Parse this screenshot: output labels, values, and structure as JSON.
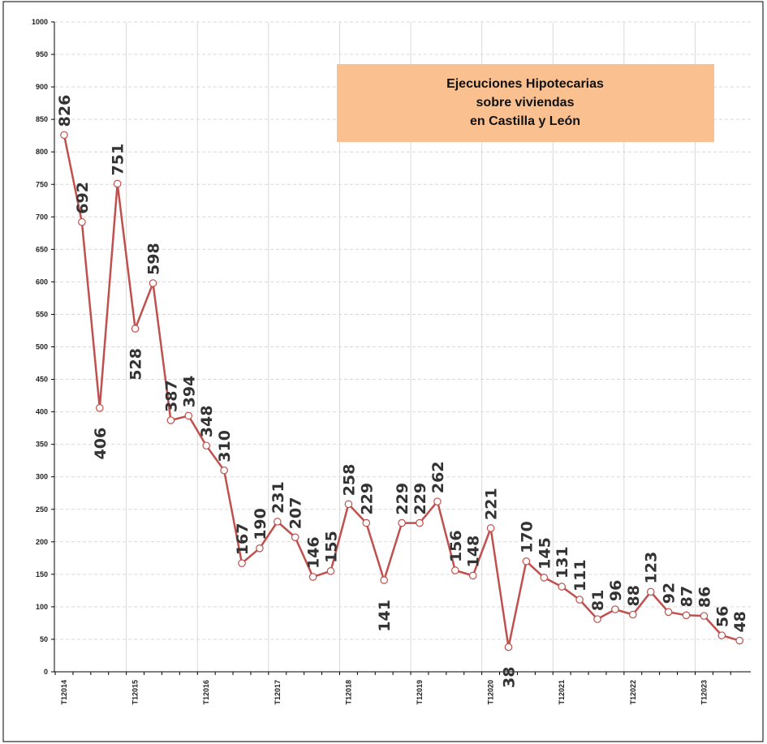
{
  "colors": {
    "line": "#c0504d",
    "marker_fill": "#ffffff",
    "title_box": "#fac090",
    "grid": "#d9d9d9",
    "vgrid": "#d9d9d9",
    "frame": "#000000"
  },
  "chart_data": {
    "type": "line",
    "title_lines": [
      "Ejecuciones Hipotecarias",
      "sobre viviendas",
      "en Castilla y León"
    ],
    "xlabel": "",
    "ylabel": "",
    "ylim": [
      0,
      1000
    ],
    "yticks": [
      0,
      50,
      100,
      150,
      200,
      250,
      300,
      350,
      400,
      450,
      500,
      550,
      600,
      650,
      700,
      750,
      800,
      850,
      900,
      950,
      1000
    ],
    "grid": true,
    "x_tick_labels": [
      "T12014",
      "T12015",
      "T12016",
      "T12017",
      "T12018",
      "T12019",
      "T12020",
      "T12021",
      "T12022",
      "T12023"
    ],
    "values": [
      826,
      692,
      406,
      751,
      528,
      598,
      387,
      394,
      348,
      310,
      167,
      190,
      231,
      207,
      146,
      155,
      258,
      229,
      141,
      229,
      229,
      262,
      156,
      148,
      221,
      38,
      170,
      145,
      131,
      111,
      81,
      96,
      88,
      123,
      92,
      87,
      86,
      56,
      48
    ],
    "labels": [
      "826",
      "692",
      "406",
      "751",
      "528",
      "598",
      "387",
      "394",
      "348",
      "310",
      "167",
      "190",
      "231",
      "207",
      "146",
      "155",
      "258",
      "229",
      "141",
      "229",
      "229",
      "262",
      "156",
      "148",
      "221",
      "38",
      "170",
      "145",
      "131",
      "111",
      "81",
      "96",
      "88",
      "123",
      "92",
      "87",
      "86",
      "56",
      "48"
    ]
  }
}
